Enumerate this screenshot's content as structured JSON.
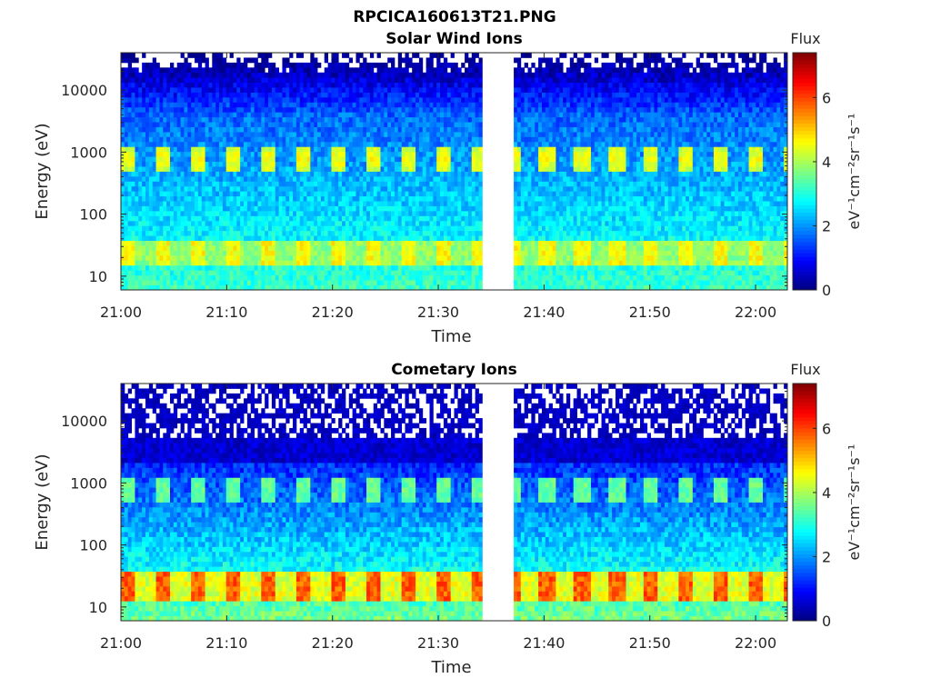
{
  "figure_title": "RPCICA160613T21.PNG",
  "chart_data": [
    {
      "type": "heatmap",
      "title": "Solar Wind Ions",
      "xlabel": "Time",
      "ylabel": "Energy (eV)",
      "yscale": "log",
      "x_ticks": [
        "21:00",
        "21:10",
        "21:20",
        "21:30",
        "21:40",
        "21:50",
        "22:00"
      ],
      "x_range": [
        "21:00",
        "22:03"
      ],
      "y_ticks": [
        10,
        100,
        1000,
        10000
      ],
      "y_range": [
        6,
        40000
      ],
      "data_gap": [
        "21:34",
        "21:37"
      ],
      "pulse_band_energy_eV": 800,
      "low_band_energy_eV": [
        15,
        35
      ],
      "colormap": "jet",
      "colorbar": {
        "title": "Flux",
        "label": "eV⁻¹cm⁻²sr⁻¹s⁻¹",
        "ticks": [
          0,
          2,
          4,
          6
        ],
        "range": [
          0,
          7.4
        ]
      }
    },
    {
      "type": "heatmap",
      "title": "Cometary Ions",
      "xlabel": "Time",
      "ylabel": "Energy (eV)",
      "yscale": "log",
      "x_ticks": [
        "21:00",
        "21:10",
        "21:20",
        "21:30",
        "21:40",
        "21:50",
        "22:00"
      ],
      "x_range": [
        "21:00",
        "22:03"
      ],
      "y_ticks": [
        10,
        100,
        1000,
        10000
      ],
      "y_range": [
        6,
        40000
      ],
      "data_gap": [
        "21:34",
        "21:37"
      ],
      "pulse_band_energy_eV": 800,
      "low_band_energy_eV": [
        12,
        40
      ],
      "colormap": "jet",
      "colorbar": {
        "title": "Flux",
        "label": "eV⁻¹cm⁻²sr⁻¹s⁻¹",
        "ticks": [
          0,
          2,
          4,
          6
        ],
        "range": [
          0,
          7.4
        ]
      }
    }
  ]
}
